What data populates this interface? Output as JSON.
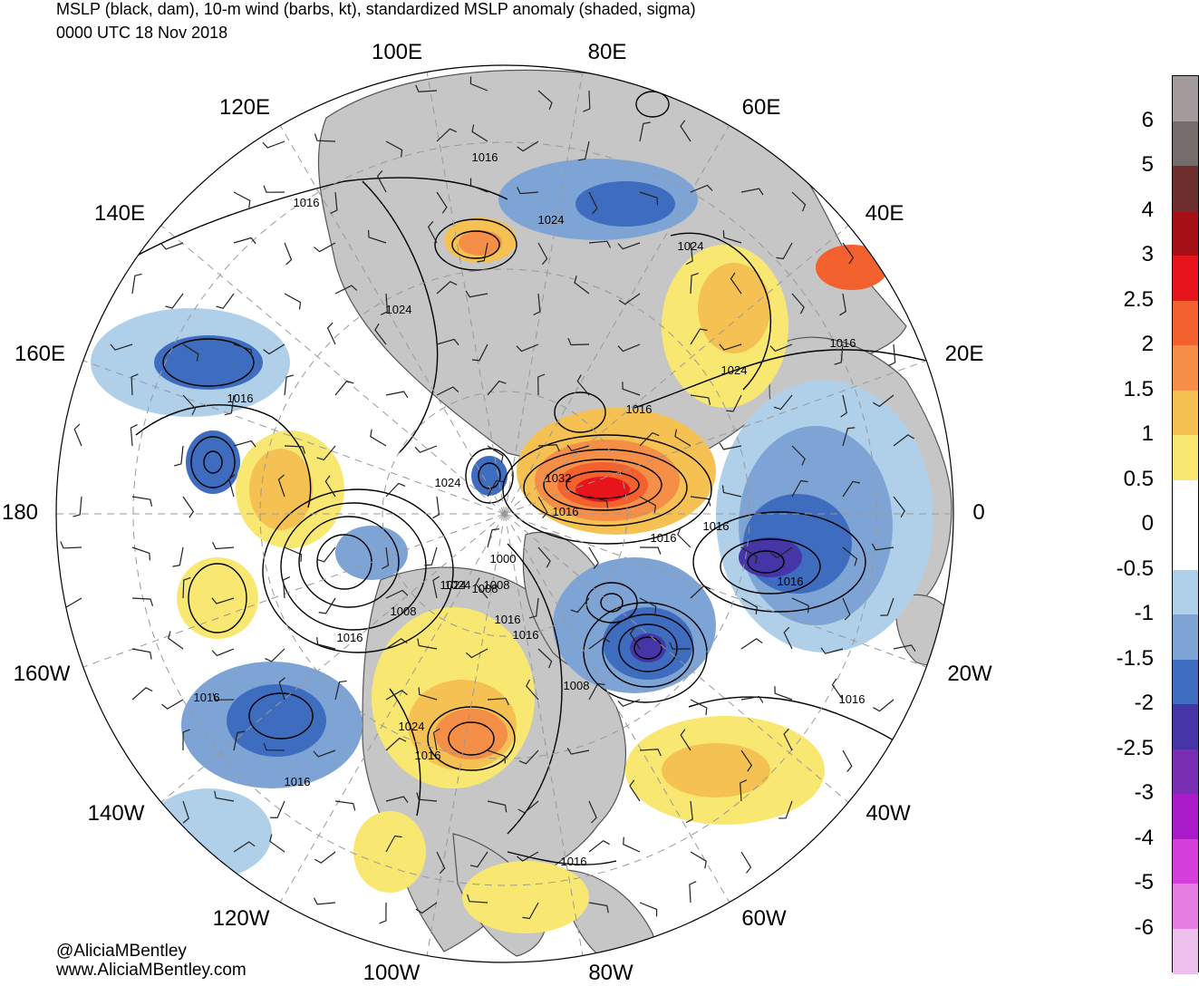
{
  "title": {
    "line1": "MSLP (black, dam), 10-m wind (barbs, kt), standardized MSLP anomaly (shaded, sigma)",
    "line2": "0000 UTC 18 Nov 2018"
  },
  "credits": {
    "twitter": "@AliciaMBentley",
    "website": "www.AliciaMBentley.com"
  },
  "longitude_labels": [
    "100E",
    "80E",
    "120E",
    "60E",
    "140E",
    "40E",
    "160E",
    "20E",
    "180",
    "0",
    "160W",
    "20W",
    "140W",
    "40W",
    "120W",
    "60W",
    "100W",
    "80W"
  ],
  "colorbar": {
    "labels": [
      "6",
      "5",
      "4",
      "3",
      "2.5",
      "2",
      "1.5",
      "1",
      "0.5",
      "0",
      "-0.5",
      "-1",
      "-1.5",
      "-2",
      "-2.5",
      "-3",
      "-4",
      "-5",
      "-6"
    ],
    "colors_top_to_bottom": [
      "#a39b9b",
      "#766c6c",
      "#6e2e2e",
      "#a50f15",
      "#e8141c",
      "#f3612e",
      "#f58e47",
      "#f5c152",
      "#f8e871",
      "#ffffff",
      "#ffffff",
      "#b0d0ea",
      "#7ea4d6",
      "#3e6cbe",
      "#4535a6",
      "#7a2fb2",
      "#a91ac9",
      "#d33fd8",
      "#e47ee3",
      "#ecbfec"
    ]
  },
  "pressure_labels": [
    "1016",
    "1016",
    "1024",
    "1024",
    "1016",
    "1024",
    "1016",
    "1024",
    "1016",
    "1024",
    "1016",
    "1032",
    "1016",
    "1016",
    "1024",
    "1016",
    "1000",
    "1024",
    "1008",
    "1008",
    "1016",
    "1008",
    "1016",
    "1016",
    "1008",
    "1016",
    "1024",
    "1016",
    "1016",
    "1016",
    "1016"
  ],
  "map": {
    "projection": "north-polar-stereographic",
    "colors": {
      "land": "#c6c6c6",
      "ocean": "#ffffff",
      "coast": "#555555",
      "isobar": "#000000",
      "graticule": "#999999"
    }
  }
}
